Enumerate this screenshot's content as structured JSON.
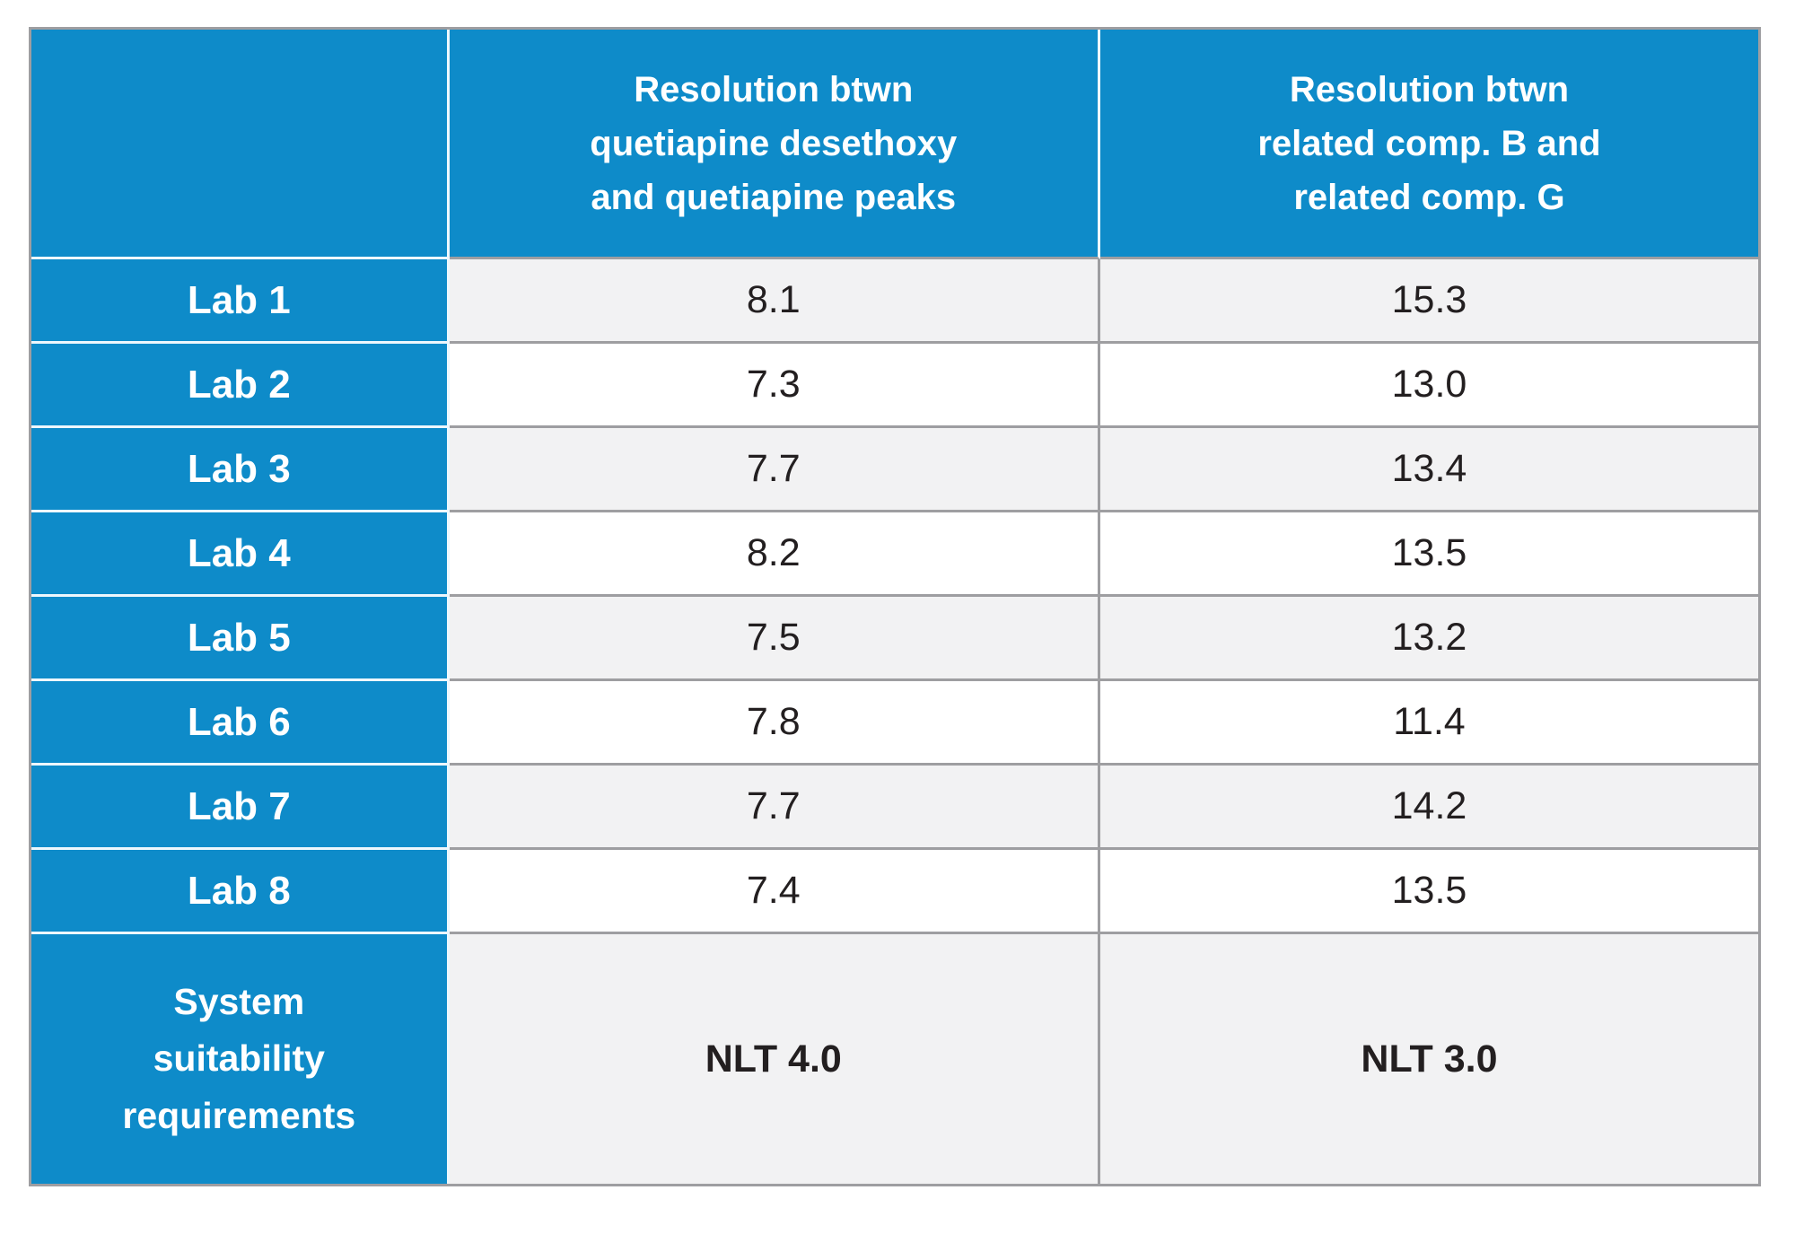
{
  "table": {
    "header": {
      "corner": "",
      "col1": "Resolution btwn\nquetiapine desethoxy\nand quetiapine peaks",
      "col2": "Resolution btwn\nrelated comp. B and\nrelated comp. G"
    },
    "rows": [
      {
        "label": "Lab 1",
        "c1": "8.1",
        "c2": "15.3"
      },
      {
        "label": "Lab 2",
        "c1": "7.3",
        "c2": "13.0"
      },
      {
        "label": "Lab 3",
        "c1": "7.7",
        "c2": "13.4"
      },
      {
        "label": "Lab 4",
        "c1": "8.2",
        "c2": "13.5"
      },
      {
        "label": "Lab 5",
        "c1": "7.5",
        "c2": "13.2"
      },
      {
        "label": "Lab 6",
        "c1": "7.8",
        "c2": "11.4"
      },
      {
        "label": "Lab 7",
        "c1": "7.7",
        "c2": "14.2"
      },
      {
        "label": "Lab 8",
        "c1": "7.4",
        "c2": "13.5"
      }
    ],
    "footer": {
      "label": "System\nsuitability\nrequirements",
      "c1": "NLT 4.0",
      "c2": "NLT 3.0"
    },
    "colors": {
      "header_blue": "#0e8bc9",
      "row_stripe": "#f2f2f3",
      "row_white": "#ffffff",
      "border_gray": "#9e9ea1",
      "separator_white": "#edf7fd",
      "text_dark": "#231f20",
      "text_light": "#ffffff"
    }
  }
}
